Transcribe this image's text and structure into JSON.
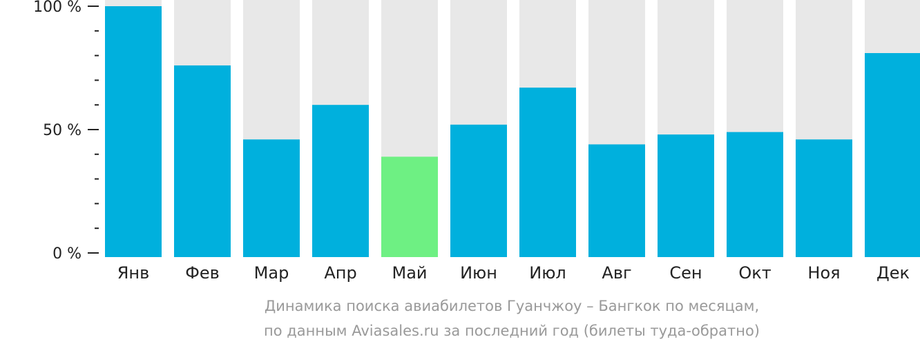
{
  "chart_data": {
    "type": "bar",
    "categories": [
      "Янв",
      "Фев",
      "Мар",
      "Апр",
      "Май",
      "Июн",
      "Июл",
      "Авг",
      "Сен",
      "Окт",
      "Ноя",
      "Дек"
    ],
    "values": [
      100,
      76,
      46,
      60,
      39,
      52,
      67,
      44,
      48,
      49,
      46,
      81
    ],
    "highlight_index": 4,
    "ylim": [
      0,
      100
    ],
    "yticks": [
      {
        "value": 0,
        "label": "0 %"
      },
      {
        "value": 50,
        "label": "50 %"
      },
      {
        "value": 100,
        "label": "100 %"
      }
    ],
    "minor_ticks": [
      10,
      20,
      30,
      40,
      60,
      70,
      80,
      90
    ],
    "colors": {
      "bar": "#00b0dd",
      "highlight": "#6ef083",
      "background_bar": "#e8e8e8",
      "axis": "#222222",
      "caption": "#999999"
    },
    "caption": [
      "Динамика поиска авиабилетов Гуанчжоу – Бангкок по месяцам,",
      "по данным Aviasales.ru за последний год (билеты туда-обратно)"
    ]
  }
}
